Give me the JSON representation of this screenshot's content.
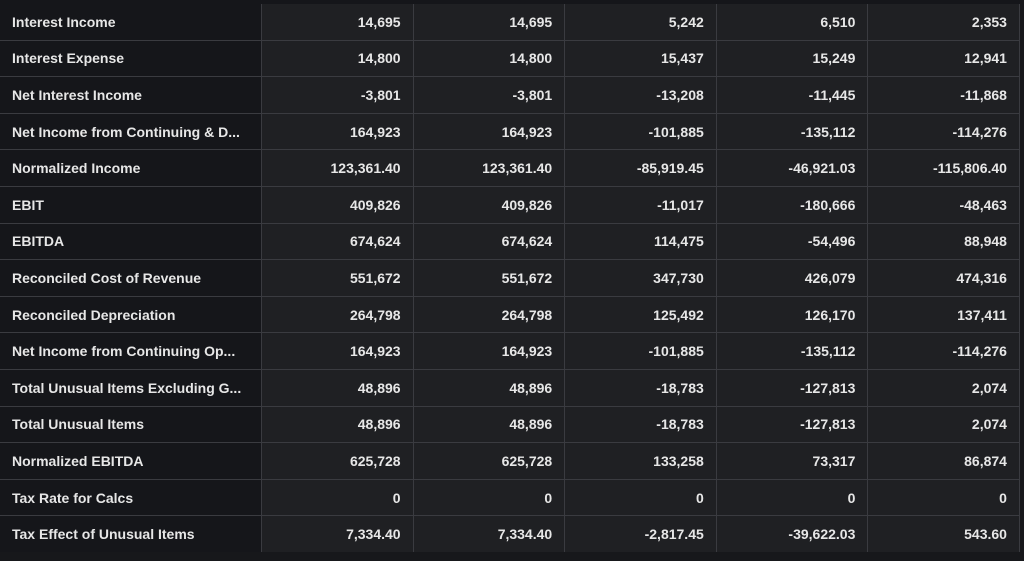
{
  "rows": [
    {
      "label": "Interest Income",
      "values": [
        "14,695",
        "14,695",
        "5,242",
        "6,510",
        "2,353"
      ]
    },
    {
      "label": "Interest Expense",
      "values": [
        "14,800",
        "14,800",
        "15,437",
        "15,249",
        "12,941"
      ]
    },
    {
      "label": "Net Interest Income",
      "values": [
        "-3,801",
        "-3,801",
        "-13,208",
        "-11,445",
        "-11,868"
      ]
    },
    {
      "label": "Net Income from Continuing & D...",
      "values": [
        "164,923",
        "164,923",
        "-101,885",
        "-135,112",
        "-114,276"
      ]
    },
    {
      "label": "Normalized Income",
      "values": [
        "123,361.40",
        "123,361.40",
        "-85,919.45",
        "-46,921.03",
        "-115,806.40"
      ]
    },
    {
      "label": "EBIT",
      "values": [
        "409,826",
        "409,826",
        "-11,017",
        "-180,666",
        "-48,463"
      ]
    },
    {
      "label": "EBITDA",
      "values": [
        "674,624",
        "674,624",
        "114,475",
        "-54,496",
        "88,948"
      ]
    },
    {
      "label": "Reconciled Cost of Revenue",
      "values": [
        "551,672",
        "551,672",
        "347,730",
        "426,079",
        "474,316"
      ]
    },
    {
      "label": "Reconciled Depreciation",
      "values": [
        "264,798",
        "264,798",
        "125,492",
        "126,170",
        "137,411"
      ]
    },
    {
      "label": "Net Income from Continuing Op...",
      "values": [
        "164,923",
        "164,923",
        "-101,885",
        "-135,112",
        "-114,276"
      ]
    },
    {
      "label": "Total Unusual Items Excluding G...",
      "values": [
        "48,896",
        "48,896",
        "-18,783",
        "-127,813",
        "2,074"
      ]
    },
    {
      "label": "Total Unusual Items",
      "values": [
        "48,896",
        "48,896",
        "-18,783",
        "-127,813",
        "2,074"
      ]
    },
    {
      "label": "Normalized EBITDA",
      "values": [
        "625,728",
        "625,728",
        "133,258",
        "73,317",
        "86,874"
      ]
    },
    {
      "label": "Tax Rate for Calcs",
      "values": [
        "0",
        "0",
        "0",
        "0",
        "0"
      ]
    },
    {
      "label": "Tax Effect of Unusual Items",
      "values": [
        "7,334.40",
        "7,334.40",
        "-2,817.45",
        "-39,622.03",
        "543.60"
      ]
    }
  ]
}
